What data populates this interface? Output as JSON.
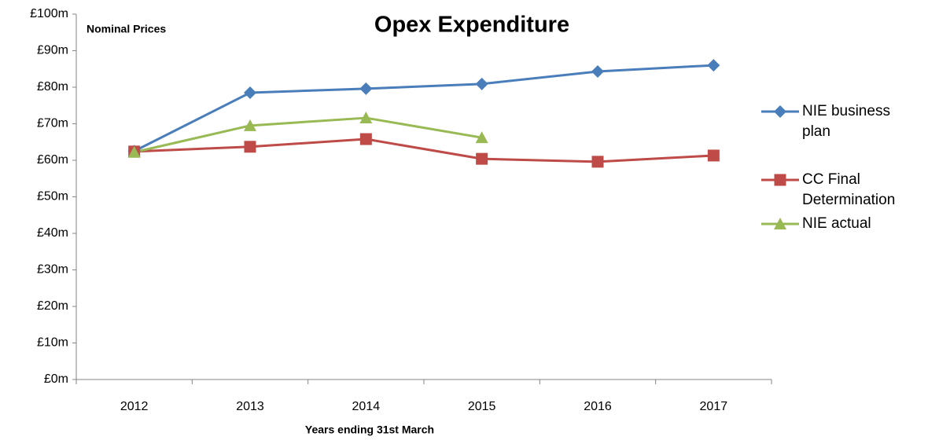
{
  "chart_data": {
    "type": "line",
    "title": "Opex Expenditure",
    "annotation": "Nominal Prices",
    "x_label": "Years ending 31st March",
    "categories": [
      "2012",
      "2013",
      "2014",
      "2015",
      "2016",
      "2017"
    ],
    "series": [
      {
        "name": "NIE business plan",
        "color": "#4a7ebb",
        "marker": "diamond",
        "values": [
          62.5,
          78.5,
          79.6,
          80.9,
          84.3,
          86.0
        ]
      },
      {
        "name": "CC Final Determination",
        "color": "#be4b48",
        "marker": "square",
        "values": [
          62.4,
          63.7,
          65.8,
          60.4,
          59.6,
          61.3
        ]
      },
      {
        "name": "NIE actual",
        "color": "#98b954",
        "marker": "triangle",
        "values": [
          62.2,
          69.5,
          71.6,
          66.2,
          null,
          null
        ]
      }
    ],
    "ylim": [
      0,
      100
    ],
    "yticks": [
      {
        "value": 0,
        "label": "£0m"
      },
      {
        "value": 10,
        "label": "£10m"
      },
      {
        "value": 20,
        "label": "£20m"
      },
      {
        "value": 30,
        "label": "£30m"
      },
      {
        "value": 40,
        "label": "£40m"
      },
      {
        "value": 50,
        "label": "£50m"
      },
      {
        "value": 60,
        "label": "£60m"
      },
      {
        "value": 70,
        "label": "£70m"
      },
      {
        "value": 80,
        "label": "£80m"
      },
      {
        "value": 90,
        "label": "£90m"
      },
      {
        "value": 100,
        "label": "£100m"
      }
    ],
    "grid": false,
    "legend": "right"
  }
}
